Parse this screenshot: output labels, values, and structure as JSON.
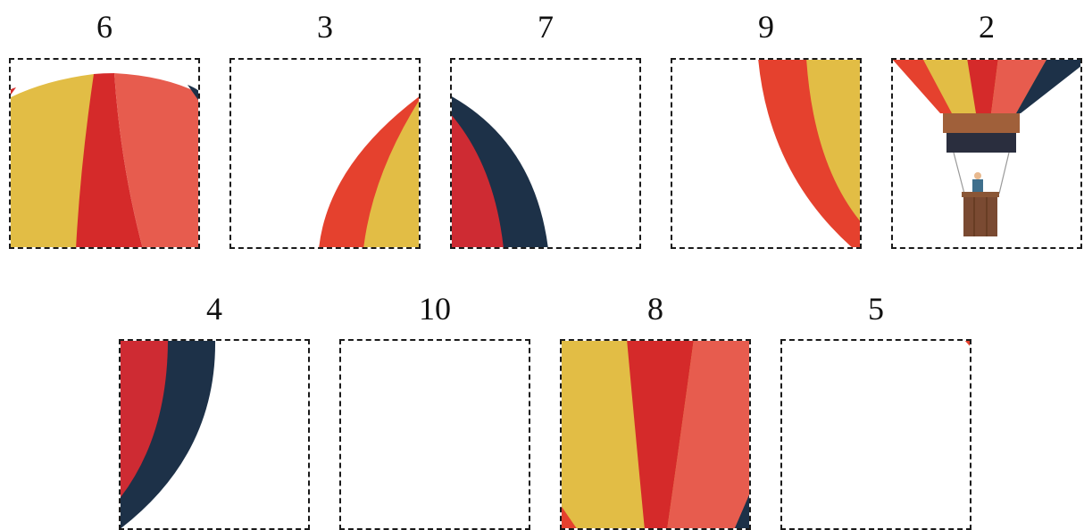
{
  "pieces": [
    {
      "id": "piece-6",
      "label": "6"
    },
    {
      "id": "piece-3",
      "label": "3"
    },
    {
      "id": "piece-7",
      "label": "7"
    },
    {
      "id": "piece-9",
      "label": "9"
    },
    {
      "id": "piece-2",
      "label": "2"
    },
    {
      "id": "piece-4",
      "label": "4"
    },
    {
      "id": "piece-10",
      "label": "10"
    },
    {
      "id": "piece-8",
      "label": "8"
    },
    {
      "id": "piece-5",
      "label": "5"
    }
  ],
  "colors": {
    "yellow": "#E2BD45",
    "red": "#D52A2A",
    "orange_red": "#E5412E",
    "coral": "#E75C4E",
    "crimson": "#CE2B33",
    "navy": "#1D3148",
    "brown": "#A0603A",
    "basket": "#7A4A32",
    "band_dark": "#2A2E3E"
  }
}
